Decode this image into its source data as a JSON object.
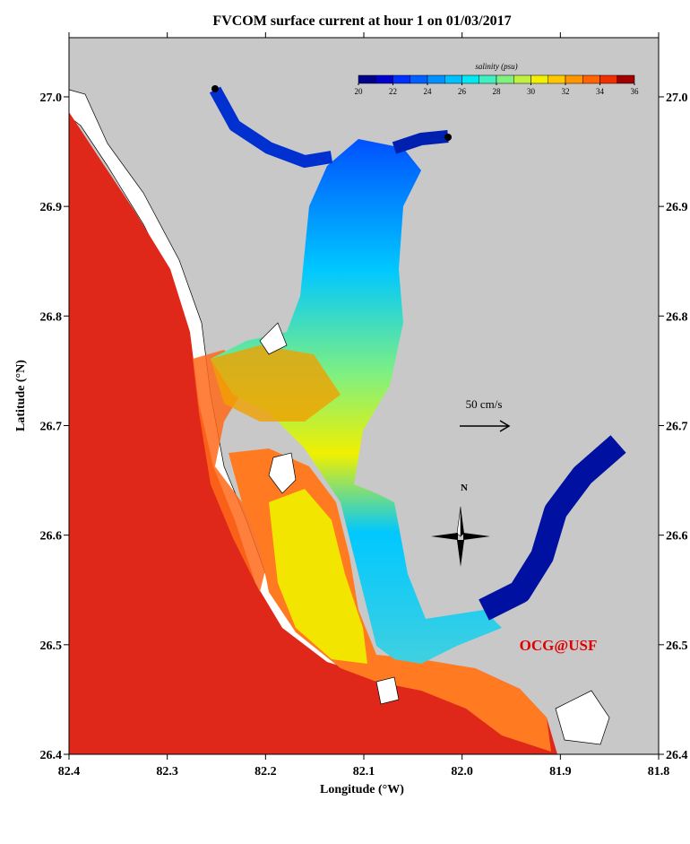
{
  "chart_data": {
    "type": "map",
    "title": "FVCOM surface current at hour 1 on 01/03/2017",
    "x_label": "Longitude (°W)",
    "y_label": "Latitude (°N)",
    "xlim": [
      82.4,
      81.8
    ],
    "xticks": [
      82.4,
      82.3,
      82.2,
      82.1,
      {
        "value": 82.0,
        "label": "82.0"
      },
      81.9,
      81.8
    ],
    "ylim": [
      26.4,
      27.054
    ],
    "yticks": [
      26.4,
      26.5,
      26.6,
      26.7,
      26.8,
      26.9,
      {
        "value": 27.0,
        "label": "27.0"
      }
    ],
    "colorbar": {
      "label": "salinity (psu)",
      "lim": [
        20,
        36
      ],
      "ticks": [
        20,
        22,
        24,
        26,
        28,
        30,
        32,
        34,
        36
      ],
      "colors": [
        "#00008b",
        "#0000cd",
        "#0030ff",
        "#0060ff",
        "#0090ff",
        "#00c0ff",
        "#00e8f0",
        "#40f0c0",
        "#80f080",
        "#c0f040",
        "#f0f000",
        "#ffc800",
        "#ff9600",
        "#ff6400",
        "#f03000",
        "#a00000"
      ]
    },
    "scale_arrow_label": "50 cm/s",
    "compass_label": "N",
    "credit": "OCG@USF"
  }
}
